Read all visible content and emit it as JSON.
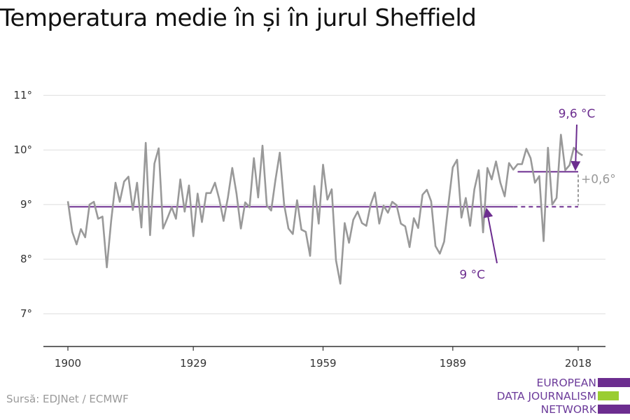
{
  "title": "Temperatura medie în și în jurul Sheffield",
  "source": "Sursă: EDJNet / ECMWF",
  "logo": {
    "lines": [
      "EUROPEAN",
      "DATA JOURNALISM",
      "NETWORK"
    ],
    "colors": [
      "#6c2d8f",
      "#9acd32",
      "#6c2d8f"
    ]
  },
  "colors": {
    "series": "#999999",
    "reference": "#6c2d8f",
    "delta": "#999999",
    "grid": "#dddddd",
    "axis": "#333333"
  },
  "chart_data": {
    "type": "line",
    "ylim": [
      6.4,
      11.4
    ],
    "xlim": [
      1895,
      2023
    ],
    "yticks": [
      7,
      8,
      9,
      10,
      11
    ],
    "ytick_labels": [
      "7°",
      "8°",
      "9°",
      "10°",
      "11°"
    ],
    "xticks": [
      1900,
      1929,
      1959,
      1989,
      2018
    ],
    "xtick_labels": [
      "1900",
      "1929",
      "1959",
      "1989",
      "2018"
    ],
    "grid": true,
    "series": [
      {
        "x": [
          1900,
          1901,
          1902,
          1903,
          1904,
          1905,
          1906,
          1907,
          1908,
          1909,
          1910,
          1911,
          1912,
          1913,
          1914,
          1915,
          1916,
          1917,
          1918,
          1919,
          1920,
          1921,
          1922,
          1923,
          1924,
          1925,
          1926,
          1927,
          1928,
          1929,
          1930,
          1931,
          1932,
          1933,
          1934,
          1935,
          1936,
          1937,
          1938,
          1939,
          1940,
          1941,
          1942,
          1943,
          1944,
          1945,
          1946,
          1947,
          1948,
          1949,
          1950,
          1951,
          1952,
          1953,
          1954,
          1955,
          1956,
          1957,
          1958,
          1959,
          1960,
          1961,
          1962,
          1963,
          1964,
          1965,
          1966,
          1967,
          1968,
          1969,
          1970,
          1971,
          1972,
          1973,
          1974,
          1975,
          1976,
          1977,
          1978,
          1979,
          1980,
          1981,
          1982,
          1983,
          1984,
          1985,
          1986,
          1987,
          1988,
          1989,
          1990,
          1991,
          1992,
          1993,
          1994,
          1995,
          1996,
          1997,
          1998,
          1999,
          2000,
          2001,
          2002,
          2003,
          2004,
          2005,
          2006,
          2007,
          2008,
          2009,
          2010,
          2011,
          2012,
          2013,
          2014,
          2015,
          2016,
          2017,
          2018,
          2019
        ],
        "values": [
          9.06,
          8.5,
          8.27,
          8.55,
          8.4,
          9.0,
          9.05,
          8.74,
          8.78,
          7.85,
          8.7,
          9.4,
          9.05,
          9.42,
          9.51,
          8.9,
          9.4,
          8.58,
          10.13,
          8.44,
          9.75,
          10.03,
          8.56,
          8.75,
          8.95,
          8.74,
          9.46,
          8.87,
          9.35,
          8.42,
          9.2,
          8.68,
          9.21,
          9.21,
          9.4,
          9.1,
          8.7,
          9.13,
          9.67,
          9.2,
          8.56,
          9.04,
          8.95,
          9.85,
          9.13,
          10.08,
          8.98,
          8.89,
          9.45,
          9.95,
          9.0,
          8.56,
          8.46,
          9.08,
          8.54,
          8.5,
          8.06,
          9.34,
          8.65,
          9.73,
          9.09,
          9.28,
          7.98,
          7.55,
          8.66,
          8.3,
          8.72,
          8.87,
          8.66,
          8.61,
          9.0,
          9.22,
          8.65,
          8.98,
          8.85,
          9.05,
          8.99,
          8.65,
          8.6,
          8.22,
          8.75,
          8.57,
          9.18,
          9.27,
          9.06,
          8.24,
          8.1,
          8.32,
          9.02,
          9.68,
          9.82,
          8.76,
          9.12,
          8.61,
          9.28,
          9.63,
          8.49,
          9.67,
          9.46,
          9.79,
          9.4,
          9.15,
          9.76,
          9.64,
          9.74,
          9.74,
          10.02,
          9.85,
          9.4,
          9.52,
          8.33,
          10.04,
          9.0,
          9.12,
          10.28,
          9.63,
          9.72,
          10.04,
          9.95,
          9.9
        ]
      }
    ],
    "reference_lines": [
      {
        "label": "9 °C",
        "value": 8.96
      },
      {
        "label": "9,6 °C",
        "value": 9.6
      }
    ],
    "delta_label": "+0,6°"
  }
}
